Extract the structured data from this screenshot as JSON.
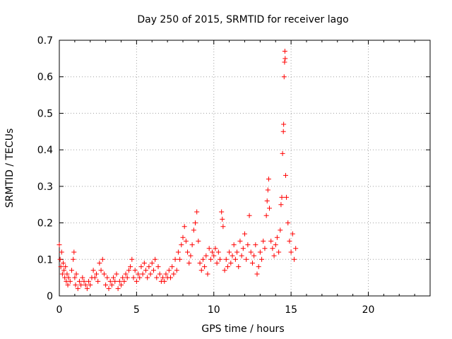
{
  "chart_data": {
    "type": "scatter",
    "title": "Day 250 of 2015, SRMTID for receiver lago",
    "xlabel": "GPS time / hours",
    "ylabel": "SRMTID / TECUs",
    "xlim": [
      0,
      24
    ],
    "ylim": [
      0,
      0.7
    ],
    "xticks": [
      0,
      5,
      10,
      15,
      20
    ],
    "yticks": [
      0,
      0.1,
      0.2,
      0.3,
      0.4,
      0.5,
      0.6,
      0.7
    ],
    "xtick_labels": [
      "0",
      "5",
      "10",
      "15",
      "20"
    ],
    "ytick_labels": [
      "0",
      "0.1",
      "0.2",
      "0.3",
      "0.4",
      "0.5",
      "0.6",
      "0.7"
    ],
    "grid": true,
    "marker": "+",
    "color": "#ff0000",
    "series": [
      {
        "name": "SRMTID",
        "points": [
          [
            0.0,
            0.14
          ],
          [
            0.05,
            0.1
          ],
          [
            0.1,
            0.08
          ],
          [
            0.15,
            0.12
          ],
          [
            0.2,
            0.06
          ],
          [
            0.25,
            0.09
          ],
          [
            0.3,
            0.07
          ],
          [
            0.35,
            0.05
          ],
          [
            0.4,
            0.08
          ],
          [
            0.45,
            0.04
          ],
          [
            0.5,
            0.06
          ],
          [
            0.55,
            0.03
          ],
          [
            0.6,
            0.05
          ],
          [
            0.7,
            0.04
          ],
          [
            0.8,
            0.07
          ],
          [
            0.9,
            0.1
          ],
          [
            0.95,
            0.12
          ],
          [
            1.0,
            0.05
          ],
          [
            1.05,
            0.03
          ],
          [
            1.1,
            0.06
          ],
          [
            1.2,
            0.02
          ],
          [
            1.3,
            0.04
          ],
          [
            1.4,
            0.03
          ],
          [
            1.5,
            0.05
          ],
          [
            1.6,
            0.04
          ],
          [
            1.7,
            0.03
          ],
          [
            1.8,
            0.02
          ],
          [
            1.9,
            0.04
          ],
          [
            2.0,
            0.03
          ],
          [
            2.1,
            0.05
          ],
          [
            2.2,
            0.07
          ],
          [
            2.3,
            0.05
          ],
          [
            2.4,
            0.06
          ],
          [
            2.5,
            0.04
          ],
          [
            2.6,
            0.09
          ],
          [
            2.7,
            0.07
          ],
          [
            2.8,
            0.1
          ],
          [
            2.9,
            0.06
          ],
          [
            3.0,
            0.03
          ],
          [
            3.1,
            0.05
          ],
          [
            3.2,
            0.02
          ],
          [
            3.3,
            0.04
          ],
          [
            3.4,
            0.03
          ],
          [
            3.5,
            0.05
          ],
          [
            3.6,
            0.04
          ],
          [
            3.7,
            0.06
          ],
          [
            3.8,
            0.02
          ],
          [
            3.9,
            0.04
          ],
          [
            4.0,
            0.03
          ],
          [
            4.1,
            0.05
          ],
          [
            4.2,
            0.04
          ],
          [
            4.3,
            0.06
          ],
          [
            4.4,
            0.05
          ],
          [
            4.5,
            0.07
          ],
          [
            4.6,
            0.08
          ],
          [
            4.7,
            0.1
          ],
          [
            4.8,
            0.05
          ],
          [
            4.9,
            0.07
          ],
          [
            5.0,
            0.04
          ],
          [
            5.1,
            0.06
          ],
          [
            5.2,
            0.05
          ],
          [
            5.3,
            0.08
          ],
          [
            5.4,
            0.06
          ],
          [
            5.5,
            0.09
          ],
          [
            5.6,
            0.07
          ],
          [
            5.7,
            0.05
          ],
          [
            5.8,
            0.08
          ],
          [
            5.9,
            0.06
          ],
          [
            6.0,
            0.09
          ],
          [
            6.1,
            0.07
          ],
          [
            6.2,
            0.1
          ],
          [
            6.3,
            0.05
          ],
          [
            6.4,
            0.08
          ],
          [
            6.5,
            0.06
          ],
          [
            6.6,
            0.04
          ],
          [
            6.7,
            0.05
          ],
          [
            6.8,
            0.04
          ],
          [
            6.9,
            0.06
          ],
          [
            7.0,
            0.05
          ],
          [
            7.1,
            0.07
          ],
          [
            7.2,
            0.05
          ],
          [
            7.3,
            0.08
          ],
          [
            7.4,
            0.06
          ],
          [
            7.5,
            0.1
          ],
          [
            7.6,
            0.07
          ],
          [
            7.7,
            0.12
          ],
          [
            7.8,
            0.1
          ],
          [
            7.9,
            0.14
          ],
          [
            8.0,
            0.16
          ],
          [
            8.1,
            0.19
          ],
          [
            8.2,
            0.15
          ],
          [
            8.3,
            0.12
          ],
          [
            8.4,
            0.09
          ],
          [
            8.5,
            0.11
          ],
          [
            8.6,
            0.14
          ],
          [
            8.7,
            0.18
          ],
          [
            8.8,
            0.2
          ],
          [
            8.9,
            0.23
          ],
          [
            9.0,
            0.15
          ],
          [
            9.1,
            0.09
          ],
          [
            9.2,
            0.07
          ],
          [
            9.3,
            0.1
          ],
          [
            9.4,
            0.08
          ],
          [
            9.5,
            0.11
          ],
          [
            9.6,
            0.06
          ],
          [
            9.7,
            0.13
          ],
          [
            9.8,
            0.1
          ],
          [
            9.9,
            0.12
          ],
          [
            10.0,
            0.11
          ],
          [
            10.1,
            0.13
          ],
          [
            10.2,
            0.09
          ],
          [
            10.3,
            0.12
          ],
          [
            10.4,
            0.1
          ],
          [
            10.5,
            0.23
          ],
          [
            10.55,
            0.21
          ],
          [
            10.6,
            0.19
          ],
          [
            10.7,
            0.07
          ],
          [
            10.8,
            0.1
          ],
          [
            10.9,
            0.08
          ],
          [
            11.0,
            0.12
          ],
          [
            11.1,
            0.09
          ],
          [
            11.2,
            0.11
          ],
          [
            11.3,
            0.14
          ],
          [
            11.4,
            0.1
          ],
          [
            11.5,
            0.12
          ],
          [
            11.6,
            0.08
          ],
          [
            11.7,
            0.15
          ],
          [
            11.8,
            0.11
          ],
          [
            11.9,
            0.13
          ],
          [
            12.0,
            0.17
          ],
          [
            12.1,
            0.1
          ],
          [
            12.2,
            0.14
          ],
          [
            12.3,
            0.22
          ],
          [
            12.4,
            0.12
          ],
          [
            12.5,
            0.09
          ],
          [
            12.6,
            0.11
          ],
          [
            12.7,
            0.14
          ],
          [
            12.8,
            0.06
          ],
          [
            12.9,
            0.08
          ],
          [
            13.0,
            0.12
          ],
          [
            13.1,
            0.1
          ],
          [
            13.2,
            0.15
          ],
          [
            13.3,
            0.13
          ],
          [
            13.4,
            0.22
          ],
          [
            13.45,
            0.26
          ],
          [
            13.5,
            0.29
          ],
          [
            13.55,
            0.32
          ],
          [
            13.6,
            0.24
          ],
          [
            13.7,
            0.15
          ],
          [
            13.8,
            0.13
          ],
          [
            13.9,
            0.11
          ],
          [
            14.0,
            0.14
          ],
          [
            14.1,
            0.16
          ],
          [
            14.2,
            0.12
          ],
          [
            14.3,
            0.18
          ],
          [
            14.35,
            0.25
          ],
          [
            14.4,
            0.27
          ],
          [
            14.45,
            0.39
          ],
          [
            14.5,
            0.45
          ],
          [
            14.52,
            0.47
          ],
          [
            14.55,
            0.6
          ],
          [
            14.58,
            0.64
          ],
          [
            14.6,
            0.67
          ],
          [
            14.62,
            0.65
          ],
          [
            14.65,
            0.33
          ],
          [
            14.7,
            0.27
          ],
          [
            14.8,
            0.2
          ],
          [
            14.9,
            0.15
          ],
          [
            15.0,
            0.12
          ],
          [
            15.1,
            0.17
          ],
          [
            15.2,
            0.1
          ],
          [
            15.3,
            0.13
          ]
        ]
      }
    ]
  }
}
